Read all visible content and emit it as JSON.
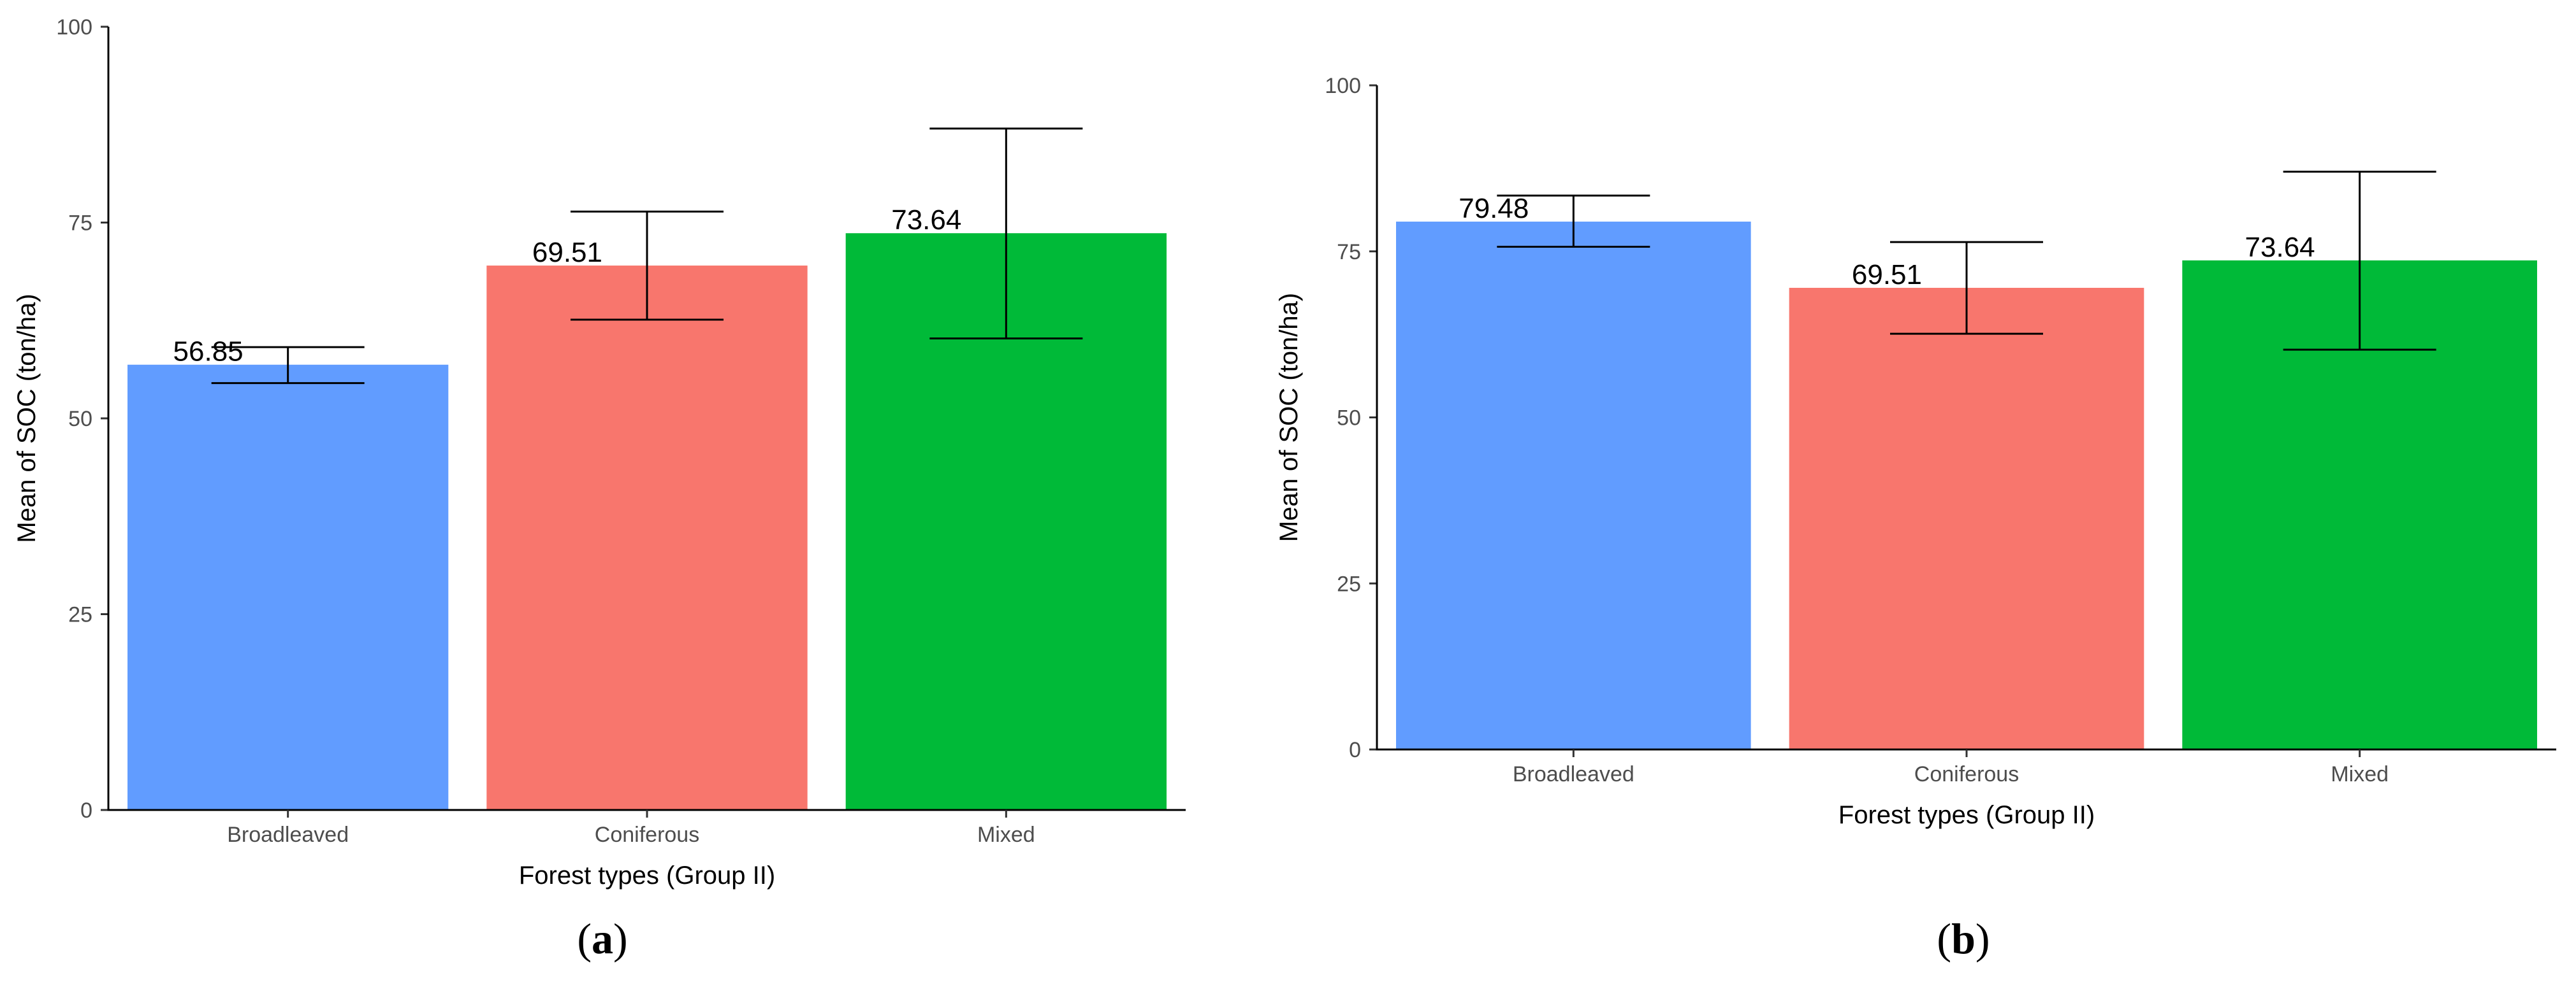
{
  "chart_data": [
    {
      "type": "bar",
      "panel_label": "a",
      "categories": [
        "Broadleaved",
        "Coniferous",
        "Mixed"
      ],
      "values": [
        56.85,
        69.51,
        73.64
      ],
      "value_labels": [
        "56.85",
        "69.51",
        "73.64"
      ],
      "error_bars": [
        {
          "low": 54.5,
          "high": 59.1
        },
        {
          "low": 62.6,
          "high": 76.4
        },
        {
          "low": 60.2,
          "high": 87.0
        }
      ],
      "colors": [
        "#619CFF",
        "#F8766D",
        "#00BA38"
      ],
      "xlabel": "Forest types (Group II)",
      "ylabel": "Mean of SOC (ton/ha)",
      "ylim": [
        0,
        100
      ],
      "yticks": [
        "0",
        "25",
        "50",
        "75",
        "100"
      ],
      "grid": false,
      "legend": "none"
    },
    {
      "type": "bar",
      "panel_label": "b",
      "categories": [
        "Broadleaved",
        "Coniferous",
        "Mixed"
      ],
      "values": [
        79.48,
        69.51,
        73.64
      ],
      "value_labels": [
        "79.48",
        "69.51",
        "73.64"
      ],
      "error_bars": [
        {
          "low": 75.7,
          "high": 83.4
        },
        {
          "low": 62.6,
          "high": 76.4
        },
        {
          "low": 60.2,
          "high": 87.0
        }
      ],
      "colors": [
        "#619CFF",
        "#F8766D",
        "#00BA38"
      ],
      "xlabel": "Forest types (Group II)",
      "ylabel": "Mean of SOC (ton/ha)",
      "ylim": [
        0,
        100
      ],
      "yticks": [
        "0",
        "25",
        "50",
        "75",
        "100"
      ],
      "grid": false,
      "legend": "none"
    }
  ]
}
